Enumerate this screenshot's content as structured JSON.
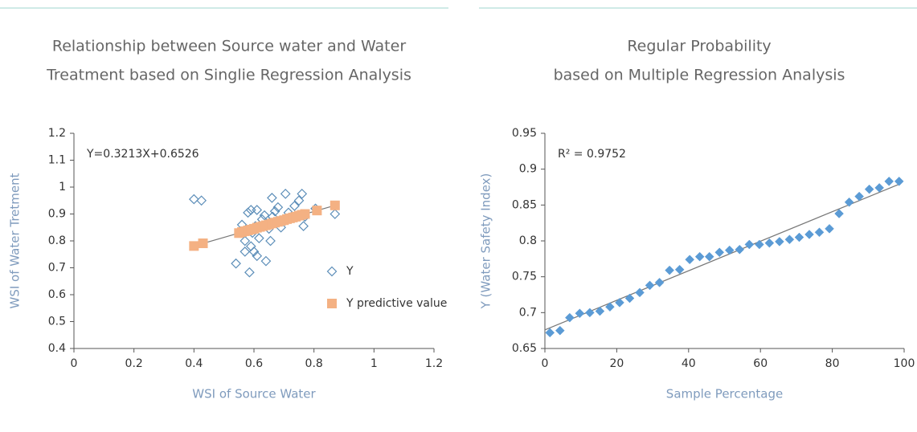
{
  "chart_data": [
    {
      "type": "scatter",
      "title": [
        "Relationship between Source water and Water",
        "Treatment based on Singlie  Regression Analysis"
      ],
      "x_label": "WSI of Source Water",
      "y_label": "WSI of Water Tretment",
      "annotation": "Y=0.3213X+0.6526",
      "xlim": [
        0,
        1.2
      ],
      "xticks": [
        0,
        0.2,
        0.4,
        0.6,
        0.8,
        1,
        1.2
      ],
      "ylim": [
        0.4,
        1.2
      ],
      "yticks": [
        0.4,
        0.5,
        0.6,
        0.7,
        0.8,
        0.9,
        1,
        1.1,
        1.2
      ],
      "legend": "right",
      "series": [
        {
          "name": "Y",
          "color": "#5b8db8",
          "marker": "diamond-open",
          "x": [
            0.4,
            0.425,
            0.54,
            0.56,
            0.57,
            0.57,
            0.58,
            0.585,
            0.59,
            0.59,
            0.595,
            0.6,
            0.605,
            0.61,
            0.61,
            0.617,
            0.627,
            0.635,
            0.64,
            0.65,
            0.655,
            0.66,
            0.662,
            0.67,
            0.68,
            0.69,
            0.695,
            0.705,
            0.715,
            0.725,
            0.735,
            0.75,
            0.76,
            0.765,
            0.77,
            0.805,
            0.87
          ],
          "values": [
            0.955,
            0.95,
            0.716,
            0.86,
            0.8,
            0.76,
            0.905,
            0.683,
            0.915,
            0.78,
            0.83,
            0.76,
            0.855,
            0.915,
            0.744,
            0.81,
            0.88,
            0.895,
            0.725,
            0.845,
            0.8,
            0.96,
            0.89,
            0.91,
            0.925,
            0.85,
            0.875,
            0.975,
            0.905,
            0.89,
            0.93,
            0.95,
            0.975,
            0.855,
            0.89,
            0.92,
            0.9
          ]
        },
        {
          "name": "Y predictive value",
          "color": "#f4b183",
          "marker": "square",
          "x": [
            0.4,
            0.43,
            0.55,
            0.56,
            0.57,
            0.58,
            0.59,
            0.6,
            0.61,
            0.62,
            0.63,
            0.64,
            0.65,
            0.66,
            0.67,
            0.68,
            0.69,
            0.7,
            0.71,
            0.72,
            0.73,
            0.74,
            0.75,
            0.76,
            0.77,
            0.81,
            0.87
          ],
          "values": [
            0.781,
            0.791,
            0.829,
            0.833,
            0.836,
            0.839,
            0.842,
            0.845,
            0.849,
            0.852,
            0.855,
            0.858,
            0.861,
            0.865,
            0.868,
            0.871,
            0.874,
            0.877,
            0.881,
            0.884,
            0.887,
            0.89,
            0.894,
            0.897,
            0.9,
            0.913,
            0.932
          ]
        }
      ],
      "trendline": {
        "color": "#777777",
        "x": [
          0.4,
          0.87
        ],
        "values": [
          0.781,
          0.932
        ]
      }
    },
    {
      "type": "scatter",
      "title": [
        "Regular Probability",
        "based on Multiple Regression Analysis"
      ],
      "x_label": "Sample Percentage",
      "y_label": "Y (Water Safety Index)",
      "annotation": "R² = 0.9752",
      "xlim": [
        0,
        100
      ],
      "xticks": [
        0,
        20,
        40,
        60,
        80,
        100
      ],
      "ylim": [
        0.65,
        0.95
      ],
      "yticks": [
        0.65,
        0.7,
        0.75,
        0.8,
        0.85,
        0.9,
        0.95
      ],
      "series": [
        {
          "color": "#5b9bd5",
          "marker": "diamond",
          "x": [
            1.4,
            4.2,
            6.9,
            9.7,
            12.5,
            15.3,
            18.1,
            20.8,
            23.6,
            26.4,
            29.2,
            31.9,
            34.7,
            37.5,
            40.3,
            43.1,
            45.8,
            48.6,
            51.4,
            54.2,
            56.9,
            59.7,
            62.5,
            65.3,
            68.1,
            70.8,
            73.6,
            76.4,
            79.2,
            81.9,
            84.7,
            87.5,
            90.3,
            93.1,
            95.8,
            98.6
          ],
          "values": [
            0.672,
            0.675,
            0.693,
            0.699,
            0.7,
            0.702,
            0.708,
            0.714,
            0.72,
            0.728,
            0.738,
            0.742,
            0.759,
            0.76,
            0.774,
            0.778,
            0.778,
            0.784,
            0.787,
            0.788,
            0.795,
            0.795,
            0.797,
            0.799,
            0.802,
            0.805,
            0.809,
            0.812,
            0.817,
            0.838,
            0.854,
            0.862,
            0.872,
            0.874,
            0.883,
            0.883
          ]
        }
      ],
      "trendline": {
        "color": "#777777",
        "x": [
          0,
          98.6
        ],
        "values": [
          0.676,
          0.879
        ]
      }
    }
  ]
}
